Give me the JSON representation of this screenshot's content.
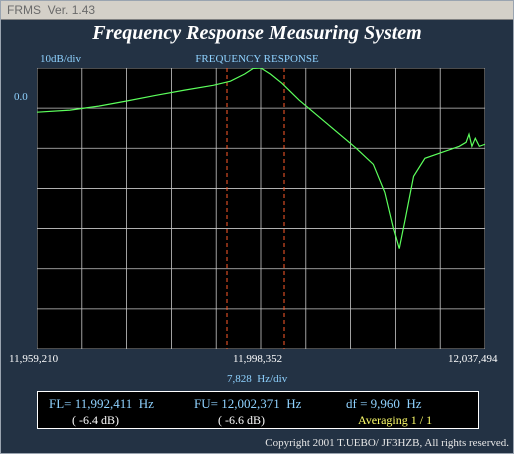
{
  "window": {
    "title": "FRMS",
    "version": "Ver. 1.43"
  },
  "app_title": "Frequency Response Measuring System",
  "plot": {
    "title": "FREQUENCY RESPONSE",
    "y_scale": "10dB/div",
    "y_ref": "0.0",
    "x_left": "11,959,210",
    "x_center": "11,998,352",
    "x_right": "12,037,494",
    "x_scale": "7,828",
    "x_scale_unit": "Hz/div"
  },
  "chart_data": {
    "type": "line",
    "x_unit": "Hz",
    "y_unit": "dB",
    "xlim": [
      11959210,
      12037494
    ],
    "ylim": [
      -70,
      0
    ],
    "grid": true,
    "series": [
      {
        "x": [
          11959210,
          11965000,
          11970000,
          11975000,
          11980000,
          11985000,
          11990000,
          11993000,
          11995500,
          11997000,
          11998352,
          12000000,
          12002000,
          12005000,
          12010000,
          12015000,
          12018000,
          12020000,
          12021500,
          12022500,
          12023500,
          12025000,
          12027000,
          12030000,
          12033000,
          12034200,
          12034700,
          12035200,
          12035800,
          12036500,
          12037494
        ],
        "y": [
          -11,
          -10.5,
          -9.5,
          -8.2,
          -6.8,
          -5.5,
          -4.3,
          -3.3,
          -1.5,
          -0.1,
          0,
          -1.5,
          -3.8,
          -8,
          -14,
          -20,
          -24,
          -31,
          -40,
          -45,
          -38,
          -27,
          -22.5,
          -21,
          -19.5,
          -18.5,
          -16.5,
          -19.5,
          -17.5,
          -19.5,
          -19
        ]
      }
    ],
    "markers": [
      {
        "name": "FL",
        "x": 11992411
      },
      {
        "name": "FU",
        "x": 12002371
      }
    ]
  },
  "readout": {
    "fl_label": "FL= 11,992,411",
    "fl_unit": "Hz",
    "fl_db": "( -6.4 dB)",
    "fu_label": "FU= 12,002,371",
    "fu_unit": "Hz",
    "fu_db": "( -6.6 dB)",
    "df_label": "df = 9,960",
    "df_unit": "Hz",
    "averaging": "Averaging   1 / 1"
  },
  "copyright": "Copyright 2001 T.UEBO/ JF3HZB, All rights reserved."
}
